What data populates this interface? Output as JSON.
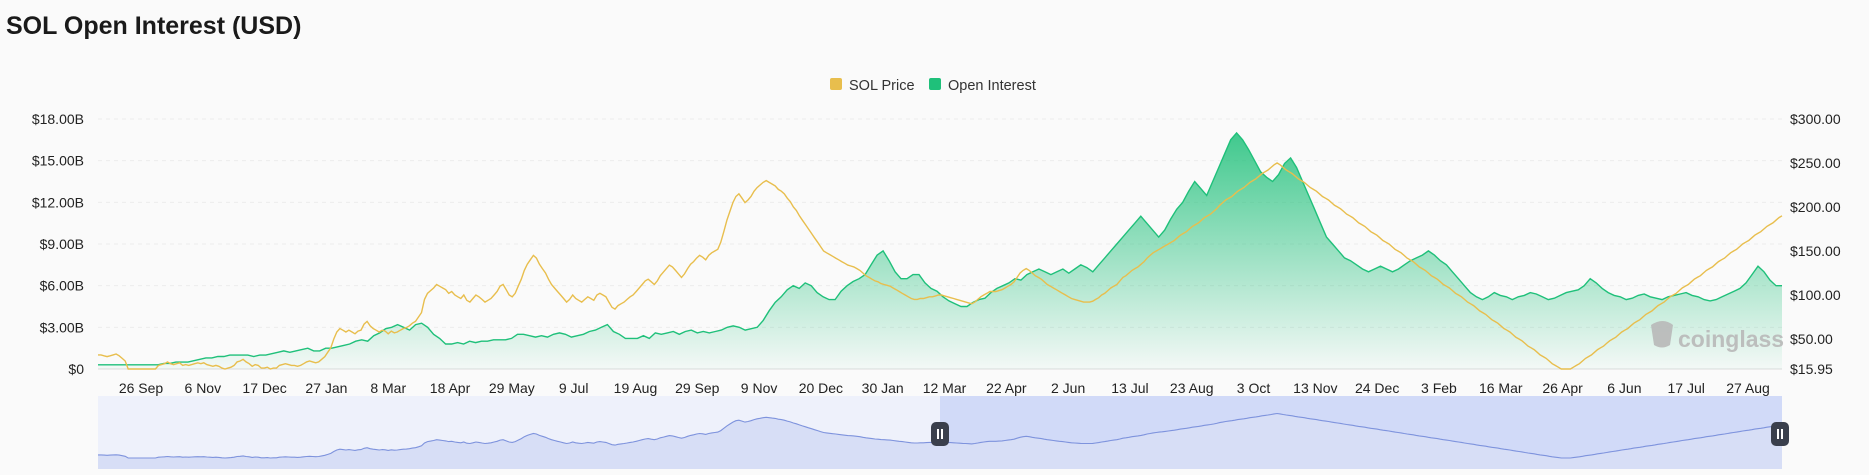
{
  "header": {
    "title": "SOL Open Interest (USD)"
  },
  "watermark": "coinglass",
  "colors": {
    "price": "#e8be4d",
    "oi_line": "#1fc07a",
    "oi_fill_top": "#1fc07a",
    "navigator_line": "#7e93dd",
    "navigator_fill": "#dde3f7",
    "navigator_selected": "#c9d4f7"
  },
  "navigator": {
    "handle_left_icon": "pause-icon",
    "handle_right_icon": "pause-icon",
    "selected_from": 0.5,
    "selected_to": 1.0
  },
  "chart_data": {
    "type": "line",
    "legend": [
      "SOL Price",
      "Open Interest"
    ],
    "legend_position": "top-center",
    "grid": true,
    "y_left": {
      "ticks": [
        "$0",
        "$3.00B",
        "$6.00B",
        "$9.00B",
        "$12.00B",
        "$15.00B",
        "$18.00B"
      ],
      "lim": [
        0,
        18
      ]
    },
    "y_right": {
      "ticks": [
        "$15.95",
        "$50.00",
        "$100.00",
        "$150.00",
        "$200.00",
        "$250.00",
        "$300.00"
      ],
      "lim": [
        15.95,
        300
      ]
    },
    "x_ticks": [
      "26 Sep",
      "6 Nov",
      "17 Dec",
      "27 Jan",
      "8 Mar",
      "18 Apr",
      "29 May",
      "9 Jul",
      "19 Aug",
      "29 Sep",
      "9 Nov",
      "20 Dec",
      "30 Jan",
      "12 Mar",
      "22 Apr",
      "2 Jun",
      "13 Jul",
      "23 Aug",
      "3 Oct",
      "13 Nov",
      "24 Dec",
      "3 Feb",
      "16 Mar",
      "26 Apr",
      "6 Jun",
      "17 Jul",
      "27 Aug"
    ],
    "x_range": [
      "2022-09",
      "2025-09"
    ],
    "series": [
      {
        "name": "SOL Price",
        "axis": "right",
        "values": [
          32,
          32,
          31,
          30,
          31,
          32,
          33,
          31,
          28,
          25,
          16,
          16,
          14,
          13,
          12,
          11,
          12,
          13,
          13,
          16,
          20,
          21,
          22,
          24,
          22,
          21,
          22,
          23,
          20,
          21,
          20,
          21,
          22,
          23,
          22,
          23,
          21,
          20,
          19,
          20,
          19,
          17,
          16,
          17,
          18,
          20,
          24,
          25,
          27,
          24,
          22,
          19,
          21,
          20,
          17,
          17,
          18,
          16,
          17,
          17,
          20,
          21,
          22,
          21,
          20,
          20,
          19,
          20,
          22,
          24,
          25,
          24,
          23,
          24,
          27,
          30,
          35,
          40,
          50,
          58,
          62,
          60,
          58,
          60,
          58,
          56,
          59,
          60,
          67,
          70,
          65,
          62,
          60,
          58,
          60,
          59,
          56,
          59,
          57,
          58,
          60,
          62,
          63,
          65,
          68,
          70,
          75,
          80,
          95,
          102,
          105,
          108,
          112,
          110,
          108,
          106,
          102,
          104,
          100,
          98,
          96,
          100,
          94,
          92,
          96,
          100,
          98,
          95,
          92,
          94,
          96,
          100,
          104,
          110,
          112,
          106,
          100,
          98,
          102,
          110,
          118,
          128,
          135,
          140,
          145,
          142,
          135,
          130,
          125,
          118,
          112,
          108,
          104,
          100,
          96,
          92,
          95,
          100,
          96,
          94,
          92,
          95,
          98,
          96,
          94,
          100,
          102,
          100,
          98,
          92,
          86,
          84,
          88,
          90,
          92,
          95,
          98,
          100,
          104,
          108,
          112,
          116,
          118,
          115,
          112,
          116,
          122,
          126,
          130,
          134,
          132,
          128,
          124,
          120,
          124,
          130,
          135,
          138,
          142,
          145,
          143,
          140,
          145,
          148,
          150,
          152,
          160,
          172,
          185,
          195,
          205,
          212,
          215,
          210,
          205,
          208,
          212,
          218,
          222,
          225,
          228,
          230,
          228,
          226,
          224,
          220,
          218,
          215,
          210,
          206,
          200,
          196,
          190,
          185,
          180,
          175,
          170,
          165,
          160,
          155,
          150,
          148,
          146,
          144,
          142,
          140,
          138,
          136,
          134,
          133,
          132,
          130,
          128,
          125,
          122,
          120,
          118,
          116,
          115,
          113,
          112,
          111,
          110,
          108,
          106,
          104,
          102,
          100,
          98,
          96,
          95,
          95,
          96,
          96,
          97,
          98,
          98,
          99,
          100,
          100,
          99,
          98,
          97,
          96,
          95,
          94,
          93,
          92,
          91,
          90,
          92,
          95,
          98,
          100,
          102,
          104,
          104,
          104,
          105,
          106,
          108,
          110,
          112,
          115,
          120,
          125,
          128,
          130,
          128,
          125,
          122,
          120,
          118,
          115,
          112,
          110,
          108,
          106,
          104,
          102,
          100,
          98,
          96,
          95,
          94,
          93,
          92,
          92,
          92,
          93,
          95,
          97,
          100,
          102,
          105,
          108,
          110,
          112,
          116,
          120,
          122,
          125,
          128,
          130,
          132,
          135,
          138,
          142,
          145,
          148,
          150,
          152,
          154,
          156,
          158,
          160,
          162,
          165,
          168,
          170,
          172,
          175,
          178,
          180,
          182,
          185,
          188,
          190,
          192,
          195,
          198,
          202,
          205,
          208,
          210,
          212,
          215,
          218,
          220,
          222,
          225,
          228,
          230,
          232,
          235,
          238,
          240,
          242,
          245,
          248,
          250,
          248,
          245,
          242,
          240,
          238,
          235,
          232,
          230,
          228,
          225,
          222,
          220,
          218,
          215,
          212,
          210,
          208,
          205,
          202,
          200,
          198,
          195,
          192,
          190,
          188,
          185,
          182,
          180,
          178,
          175,
          172,
          170,
          168,
          165,
          162,
          160,
          158,
          155,
          152,
          150,
          148,
          145,
          142,
          140,
          138,
          135,
          132,
          130,
          128,
          125,
          122,
          120,
          118,
          115,
          112,
          110,
          108,
          105,
          102,
          100,
          98,
          95,
          92,
          90,
          88,
          85,
          82,
          80,
          78,
          75,
          72,
          70,
          68,
          65,
          62,
          60,
          58,
          55,
          52,
          50,
          48,
          45,
          42,
          40,
          38,
          35,
          32,
          30,
          28,
          25,
          22,
          20,
          18,
          16,
          15,
          15,
          16,
          18,
          20,
          22,
          25,
          28,
          30,
          32,
          35,
          38,
          40,
          42,
          45,
          48,
          50,
          52,
          55,
          58,
          60,
          62,
          65,
          68,
          70,
          72,
          75,
          78,
          80,
          82,
          85,
          88,
          90,
          92,
          95,
          98,
          100,
          102,
          105,
          108,
          110,
          112,
          115,
          118,
          120,
          122,
          125,
          128,
          130,
          132,
          135,
          138,
          140,
          142,
          145,
          148,
          150,
          152,
          155,
          158,
          160,
          162,
          165,
          168,
          170,
          172,
          175,
          178,
          180,
          182,
          185,
          188,
          190
        ]
      },
      {
        "name": "Open Interest",
        "axis": "left",
        "values": [
          0.3,
          0.3,
          0.3,
          0.3,
          0.3,
          0.3,
          0.3,
          0.3,
          0.3,
          0.3,
          0.3,
          0.4,
          0.4,
          0.5,
          0.5,
          0.5,
          0.6,
          0.7,
          0.8,
          0.8,
          0.9,
          0.9,
          1.0,
          1.0,
          1.0,
          1.0,
          0.9,
          1.0,
          1.0,
          1.1,
          1.2,
          1.3,
          1.2,
          1.3,
          1.4,
          1.5,
          1.3,
          1.3,
          1.5,
          1.5,
          1.6,
          1.7,
          1.8,
          2.0,
          2.1,
          2.0,
          2.4,
          2.6,
          2.9,
          3.0,
          3.2,
          3.0,
          2.8,
          3.2,
          3.3,
          3.0,
          2.5,
          2.2,
          1.8,
          1.8,
          1.9,
          1.8,
          2.0,
          1.9,
          2.0,
          2.0,
          2.1,
          2.1,
          2.1,
          2.2,
          2.5,
          2.5,
          2.4,
          2.3,
          2.4,
          2.3,
          2.5,
          2.6,
          2.5,
          2.3,
          2.4,
          2.5,
          2.7,
          2.8,
          3.0,
          3.2,
          2.7,
          2.5,
          2.2,
          2.2,
          2.2,
          2.4,
          2.2,
          2.6,
          2.5,
          2.6,
          2.7,
          2.5,
          2.7,
          2.8,
          2.6,
          2.7,
          2.6,
          2.7,
          2.8,
          3.0,
          3.1,
          3.0,
          2.8,
          2.9,
          3.0,
          3.5,
          4.2,
          4.8,
          5.2,
          5.7,
          6.0,
          5.8,
          6.2,
          6.0,
          5.5,
          5.2,
          5.0,
          5.0,
          5.6,
          6.0,
          6.3,
          6.5,
          6.8,
          7.5,
          8.2,
          8.5,
          7.8,
          7.0,
          6.5,
          6.5,
          6.8,
          6.8,
          6.2,
          5.8,
          5.6,
          5.2,
          4.9,
          4.7,
          4.5,
          4.5,
          4.8,
          5.0,
          5.1,
          5.5,
          5.8,
          6.0,
          6.2,
          6.5,
          6.4,
          6.8,
          7.0,
          7.2,
          7.0,
          6.8,
          7.0,
          7.2,
          6.9,
          7.2,
          7.5,
          7.3,
          7.0,
          7.5,
          8.0,
          8.5,
          9.0,
          9.5,
          10.0,
          10.5,
          11.0,
          10.5,
          10.0,
          9.5,
          10.0,
          10.8,
          11.5,
          12.0,
          12.8,
          13.5,
          13.0,
          12.5,
          13.5,
          14.5,
          15.5,
          16.5,
          17.0,
          16.5,
          15.8,
          15.0,
          14.2,
          13.8,
          13.5,
          14.0,
          14.8,
          15.2,
          14.5,
          13.5,
          12.5,
          11.5,
          10.5,
          9.5,
          9.0,
          8.5,
          8.0,
          7.8,
          7.5,
          7.2,
          7.0,
          7.2,
          7.4,
          7.2,
          7.0,
          7.2,
          7.5,
          7.8,
          8.0,
          8.2,
          8.5,
          8.2,
          7.8,
          7.5,
          7.0,
          6.5,
          6.0,
          5.5,
          5.2,
          5.0,
          5.2,
          5.5,
          5.3,
          5.2,
          5.0,
          5.2,
          5.3,
          5.5,
          5.4,
          5.2,
          5.0,
          5.1,
          5.3,
          5.5,
          5.6,
          5.7,
          6.0,
          6.5,
          6.2,
          5.8,
          5.5,
          5.3,
          5.2,
          5.0,
          5.1,
          5.3,
          5.4,
          5.2,
          5.1,
          5.0,
          5.2,
          5.3,
          5.4,
          5.5,
          5.3,
          5.2,
          5.0,
          4.9,
          5.0,
          5.2,
          5.4,
          5.6,
          5.8,
          6.2,
          6.8,
          7.4,
          7.0,
          6.4,
          6.0,
          6.0
        ]
      }
    ]
  }
}
